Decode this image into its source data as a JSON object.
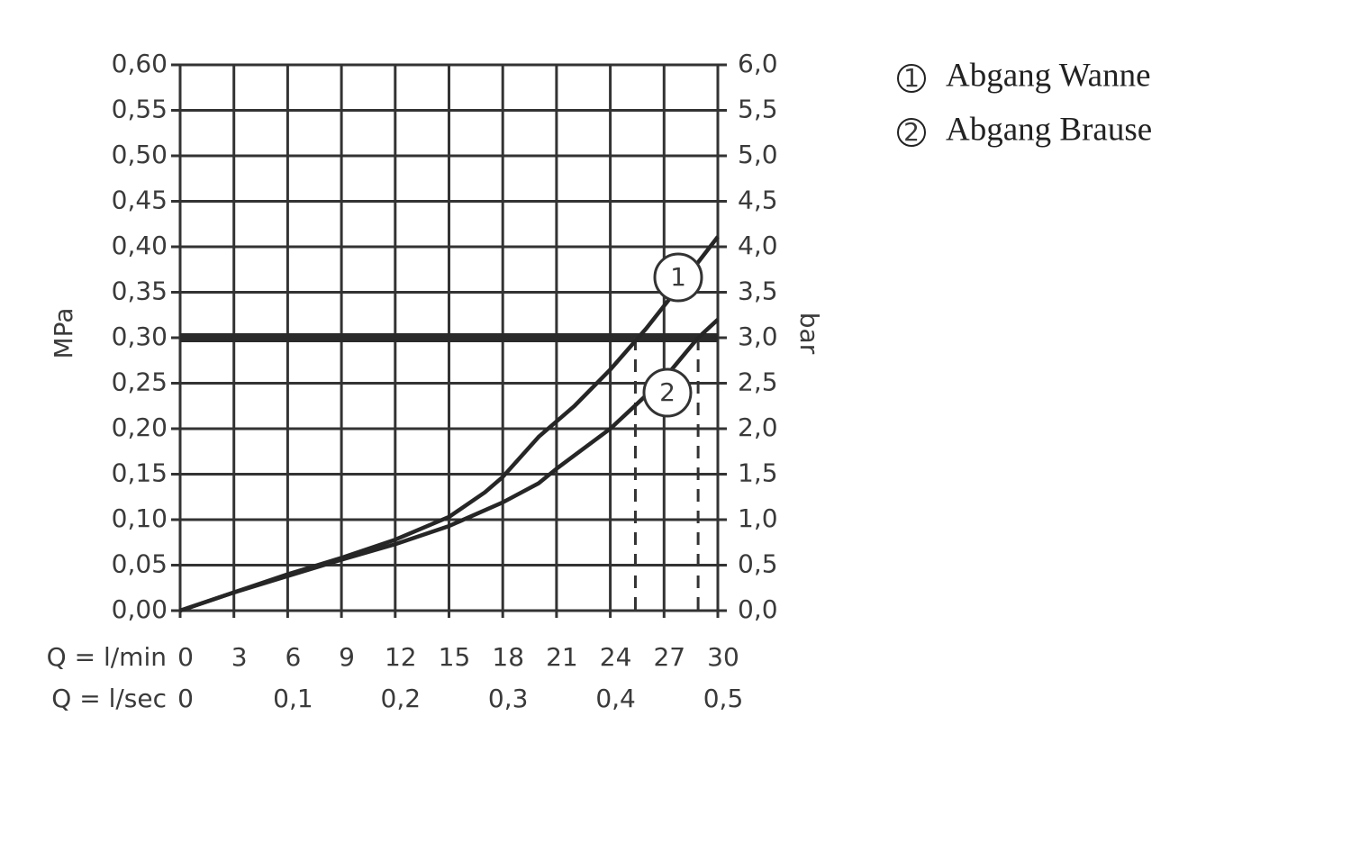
{
  "chart_data": {
    "type": "line",
    "x_label": "Q = l/min",
    "x2_label": "Q = l/sec",
    "y_label": "MPa",
    "y2_label": "bar",
    "xlim": [
      0,
      30
    ],
    "xticks": [
      0,
      3,
      6,
      9,
      12,
      15,
      18,
      21,
      24,
      27,
      30
    ],
    "x2lim": [
      0,
      0.5
    ],
    "x2ticks": [
      0,
      {
        "value": 0.1,
        "label": "0,1"
      },
      {
        "value": 0.2,
        "label": "0,2"
      },
      {
        "value": 0.3,
        "label": "0,3"
      },
      {
        "value": 0.4,
        "label": "0,4"
      },
      {
        "value": 0.5,
        "label": "0,5"
      }
    ],
    "ylim": [
      0,
      0.6
    ],
    "yticks": [
      {
        "value": 0,
        "label": "0,00"
      },
      {
        "value": 0.05,
        "label": "0,05"
      },
      {
        "value": 0.1,
        "label": "0,10"
      },
      {
        "value": 0.15,
        "label": "0,15"
      },
      {
        "value": 0.2,
        "label": "0,20"
      },
      {
        "value": 0.25,
        "label": "0,25"
      },
      {
        "value": 0.3,
        "label": "0,30"
      },
      {
        "value": 0.35,
        "label": "0,35"
      },
      {
        "value": 0.4,
        "label": "0,40"
      },
      {
        "value": 0.45,
        "label": "0,45"
      },
      {
        "value": 0.5,
        "label": "0,50"
      },
      {
        "value": 0.55,
        "label": "0,55"
      },
      {
        "value": 0.6,
        "label": "0,60"
      }
    ],
    "y2lim": [
      0,
      6
    ],
    "y2ticks": [
      {
        "value": 0,
        "label": "0,0"
      },
      {
        "value": 0.5,
        "label": "0,5"
      },
      {
        "value": 1,
        "label": "1,0"
      },
      {
        "value": 1.5,
        "label": "1,5"
      },
      {
        "value": 2,
        "label": "2,0"
      },
      {
        "value": 2.5,
        "label": "2,5"
      },
      {
        "value": 3,
        "label": "3,0"
      },
      {
        "value": 3.5,
        "label": "3,5"
      },
      {
        "value": 4,
        "label": "4,0"
      },
      {
        "value": 4.5,
        "label": "4,5"
      },
      {
        "value": 5,
        "label": "5,0"
      },
      {
        "value": 5.5,
        "label": "5,5"
      },
      {
        "value": 6,
        "label": "6,0"
      }
    ],
    "grid": true,
    "reference_y": 0.3,
    "reference_x": [
      25.4,
      28.9
    ],
    "series": [
      {
        "name": "Abgang Wanne",
        "label": "1",
        "color": "#262626",
        "x": [
          0,
          3,
          6,
          9,
          12,
          15,
          17,
          18,
          20,
          22,
          24,
          26,
          28,
          30
        ],
        "values": [
          0,
          0.02,
          0.04,
          0.058,
          0.078,
          0.103,
          0.13,
          0.147,
          0.191,
          0.225,
          0.265,
          0.31,
          0.36,
          0.411
        ]
      },
      {
        "name": "Abgang Brause",
        "label": "2",
        "color": "#262626",
        "x": [
          0,
          3,
          6,
          9,
          12,
          15,
          18,
          20,
          21,
          24,
          27,
          28.9,
          30
        ],
        "values": [
          0,
          0.02,
          0.038,
          0.056,
          0.073,
          0.093,
          0.119,
          0.14,
          0.156,
          0.2,
          0.255,
          0.3,
          0.32
        ]
      }
    ]
  }
}
